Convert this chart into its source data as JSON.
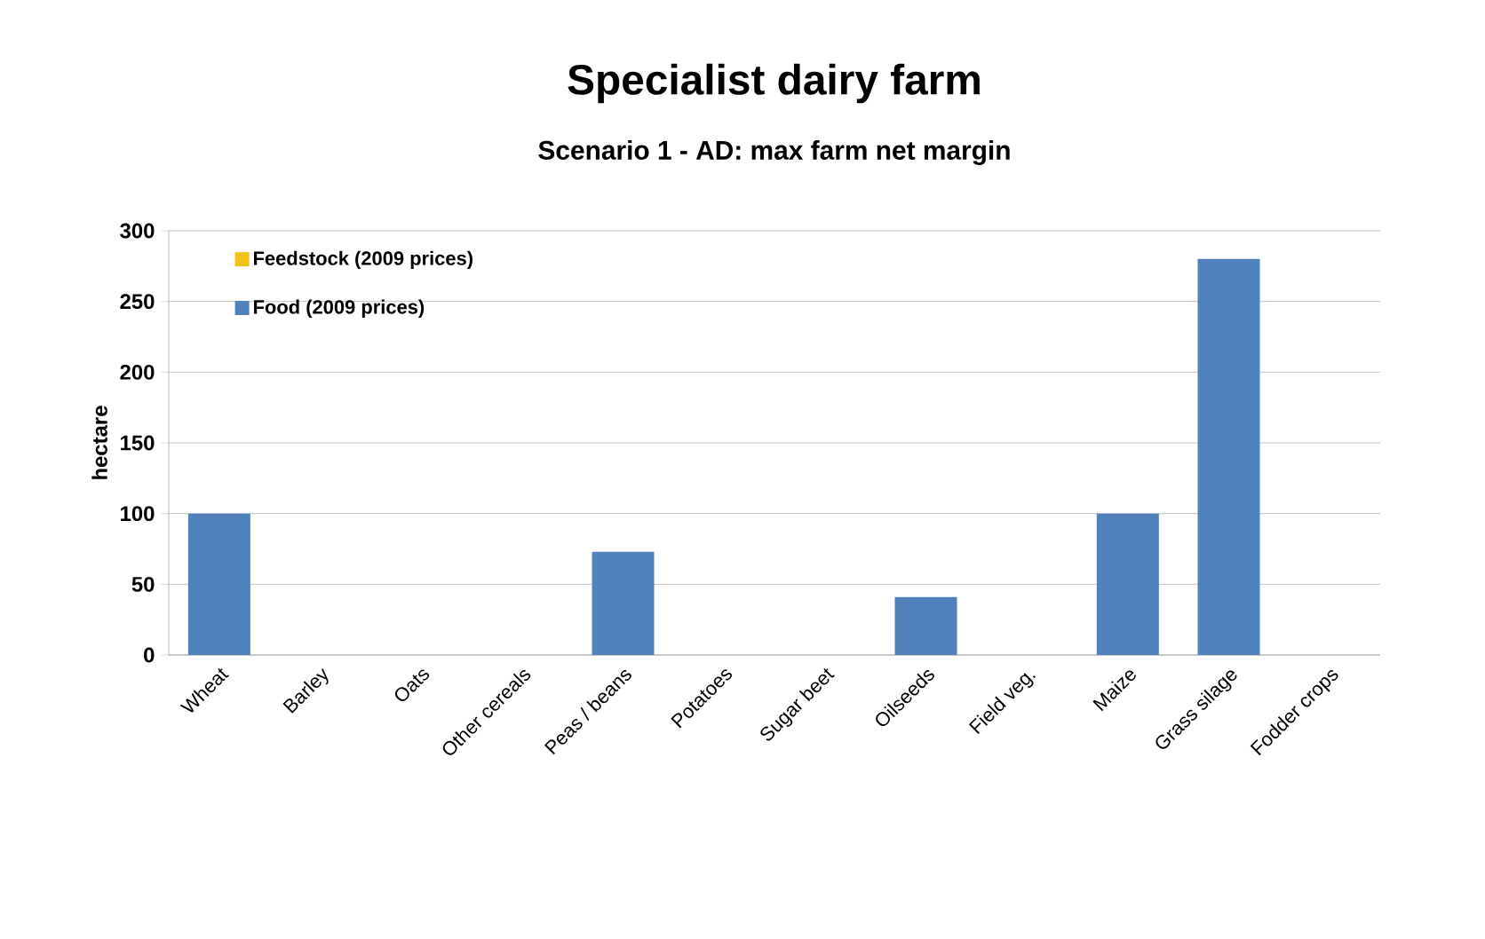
{
  "chart_data": {
    "type": "bar",
    "title": "Specialist dairy farm",
    "subtitle": "Scenario 1 - AD: max farm net margin",
    "ylabel": "hectare",
    "categories": [
      "Wheat",
      "Barley",
      "Oats",
      "Other cereals",
      "Peas / beans",
      "Potatoes",
      "Sugar beet",
      "Oilseeds",
      "Field veg.",
      "Maize",
      "Grass silage",
      "Fodder crops"
    ],
    "series": [
      {
        "name": "Food (2009 prices)",
        "color": "#4f81bd",
        "values": [
          100,
          null,
          null,
          null,
          73,
          null,
          null,
          41,
          null,
          100,
          280,
          null
        ]
      },
      {
        "name": "Feedstock (2009 prices)",
        "color": "#f2c314",
        "values": [
          null,
          null,
          null,
          null,
          null,
          null,
          null,
          null,
          null,
          null,
          null,
          null
        ]
      }
    ],
    "stacked": true,
    "ylim": [
      0,
      300
    ],
    "yticks": [
      0,
      50,
      100,
      150,
      200,
      250,
      300
    ],
    "grid": "y",
    "legend": "top left"
  }
}
